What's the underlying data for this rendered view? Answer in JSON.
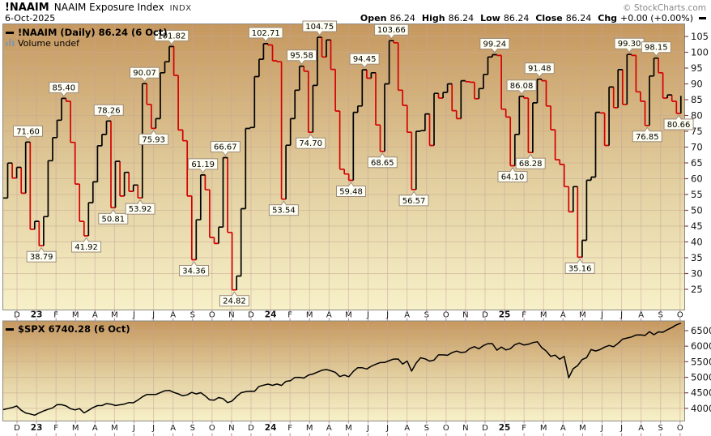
{
  "header": {
    "symbol": "!NAAIM",
    "title": "NAAIM Exposure Index",
    "exchange": "INDX",
    "date": "6-Oct-2025",
    "copyright": "© StockCharts.com",
    "quote": {
      "open_label": "Open",
      "open": "86.24",
      "high_label": "High",
      "high": "86.24",
      "low_label": "Low",
      "low": "86.24",
      "close_label": "Close",
      "close": "86.24",
      "chg_label": "Chg",
      "chg": "+0.00 (+0.00%)"
    }
  },
  "colors": {
    "up": "#000000",
    "down": "#d40000",
    "spx_line": "#000000",
    "grid_vertical": "#c79f9f",
    "grid_horizontal": "#c9ab92",
    "bg_top": "#c6985f",
    "bg_mid": "#e2cfa0",
    "bg_bottom": "#f7f0c8",
    "axis_text": "#141414",
    "x_tick": "#c08888",
    "y_tick": "#7a4a4a",
    "panel_border": "#8b8b83",
    "callout_bg": "#fffef2",
    "callout_border": "#9c8c7c",
    "volume_legend": "#66788a"
  },
  "chart_data": [
    {
      "type": "line",
      "style": "step",
      "title": "!NAAIM Exposure Index (Daily)",
      "legend": "!NAAIM (Daily) 86.24 (6 Oct)",
      "legend2": "Volume undef",
      "frequency": "weekly",
      "x_start": "2022-11-09",
      "x_end": "2025-10-01",
      "ylim": [
        18,
        109
      ],
      "yticks": [
        25,
        30,
        35,
        40,
        45,
        50,
        55,
        60,
        65,
        70,
        75,
        80,
        85,
        90,
        95,
        100,
        105
      ],
      "grid": true,
      "up_color": "#000000",
      "down_color": "#d40000",
      "x_axis_labels": [
        "D",
        "23",
        "F",
        "M",
        "A",
        "M",
        "J",
        "J",
        "A",
        "S",
        "O",
        "N",
        "D",
        "24",
        "F",
        "M",
        "A",
        "M",
        "J",
        "J",
        "A",
        "S",
        "O",
        "N",
        "D",
        "25",
        "F",
        "M",
        "A",
        "M",
        "J",
        "J",
        "A",
        "S",
        "O"
      ],
      "values": [
        53.91,
        64.96,
        60.2,
        63.6,
        55.4,
        71.6,
        44.0,
        46.5,
        38.79,
        48.0,
        65.7,
        73.0,
        78.5,
        85.4,
        84.5,
        71.5,
        58.3,
        46.5,
        41.92,
        52.4,
        59.0,
        70.4,
        74.0,
        78.26,
        50.81,
        65.5,
        54.5,
        62.0,
        56.0,
        58.0,
        53.92,
        90.07,
        83.5,
        75.93,
        79.0,
        93.5,
        97.0,
        101.82,
        92.7,
        75.4,
        72.0,
        54.5,
        34.36,
        47.0,
        61.19,
        56.5,
        41.4,
        39.5,
        44.7,
        66.67,
        43.0,
        24.82,
        29.2,
        50.5,
        75.9,
        76.2,
        92.3,
        97.8,
        102.71,
        102.3,
        97.3,
        97.0,
        53.54,
        70.6,
        79.0,
        88.0,
        95.58,
        94.0,
        74.7,
        89.5,
        104.75,
        98.5,
        103.9,
        94.6,
        81.4,
        63.0,
        61.5,
        59.48,
        81.0,
        83.0,
        94.45,
        91.8,
        93.5,
        77.0,
        68.65,
        90.0,
        103.66,
        103.0,
        88.0,
        83.2,
        74.7,
        56.57,
        75.0,
        75.2,
        80.5,
        70.5,
        87.0,
        85.5,
        87.3,
        90.0,
        81.5,
        79.0,
        91.0,
        90.7,
        90.5,
        85.3,
        88.5,
        93.0,
        98.5,
        99.24,
        99.0,
        82.0,
        79.5,
        64.1,
        74.0,
        86.08,
        85.5,
        68.28,
        84.0,
        91.48,
        91.0,
        83.0,
        75.5,
        66.0,
        64.5,
        57.5,
        49.5,
        57.5,
        35.16,
        40.5,
        59.5,
        60.5,
        81.0,
        80.8,
        70.5,
        89.0,
        82.5,
        94.5,
        83.5,
        99.3,
        99.0,
        87.5,
        84.5,
        76.85,
        92.5,
        98.15,
        93.5,
        85.5,
        86.5,
        84.5,
        80.66,
        86.24
      ],
      "annotations": [
        {
          "label": "71.60",
          "week": 5,
          "pos": "above"
        },
        {
          "label": "38.79",
          "week": 8,
          "pos": "below"
        },
        {
          "label": "85.40",
          "week": 13,
          "pos": "above"
        },
        {
          "label": "41.92",
          "week": 18,
          "pos": "below"
        },
        {
          "label": "78.26",
          "week": 23,
          "pos": "above"
        },
        {
          "label": "50.81",
          "week": 24,
          "pos": "below"
        },
        {
          "label": "53.92",
          "week": 30,
          "pos": "below"
        },
        {
          "label": "90.07",
          "week": 31,
          "pos": "above"
        },
        {
          "label": "75.93",
          "week": 33,
          "pos": "below"
        },
        {
          "label": "101.82",
          "week": 37,
          "pos": "above"
        },
        {
          "label": "34.36",
          "week": 42,
          "pos": "below"
        },
        {
          "label": "61.19",
          "week": 44,
          "pos": "above"
        },
        {
          "label": "66.67",
          "week": 49,
          "pos": "above"
        },
        {
          "label": "24.82",
          "week": 51,
          "pos": "below"
        },
        {
          "label": "102.71",
          "week": 58,
          "pos": "above"
        },
        {
          "label": "53.54",
          "week": 62,
          "pos": "below"
        },
        {
          "label": "95.58",
          "week": 66,
          "pos": "above"
        },
        {
          "label": "74.70",
          "week": 68,
          "pos": "below"
        },
        {
          "label": "104.75",
          "week": 70,
          "pos": "above"
        },
        {
          "label": "59.48",
          "week": 77,
          "pos": "below"
        },
        {
          "label": "94.45",
          "week": 80,
          "pos": "above"
        },
        {
          "label": "68.65",
          "week": 84,
          "pos": "below"
        },
        {
          "label": "103.66",
          "week": 86,
          "pos": "above"
        },
        {
          "label": "56.57",
          "week": 91,
          "pos": "below"
        },
        {
          "label": "99.24",
          "week": 109,
          "pos": "above"
        },
        {
          "label": "64.10",
          "week": 113,
          "pos": "below"
        },
        {
          "label": "86.08",
          "week": 115,
          "pos": "above"
        },
        {
          "label": "68.28",
          "week": 117,
          "pos": "below"
        },
        {
          "label": "91.48",
          "week": 119,
          "pos": "above"
        },
        {
          "label": "35.16",
          "week": 128,
          "pos": "below"
        },
        {
          "label": "99.30",
          "week": 139,
          "pos": "above"
        },
        {
          "label": "76.85",
          "week": 143,
          "pos": "below"
        },
        {
          "label": "98.15",
          "week": 145,
          "pos": "above"
        },
        {
          "label": "80.66",
          "week": 150,
          "pos": "below"
        }
      ]
    },
    {
      "type": "line",
      "style": "linear",
      "title": "$SPX",
      "legend": "$SPX 6740.28 (6 Oct)",
      "frequency": "weekly",
      "x_start": "2022-11-09",
      "x_end": "2025-10-06",
      "ylim": [
        3600,
        6790
      ],
      "yticks": [
        4000,
        4500,
        5000,
        5500,
        6000,
        6500
      ],
      "grid": true,
      "line_color": "#000000",
      "values": [
        3958,
        3992,
        4027,
        4080,
        3940,
        3852,
        3822,
        3783,
        3853,
        3920,
        3970,
        4017,
        4120,
        4118,
        4080,
        3990,
        3952,
        3992,
        3855,
        3937,
        4028,
        4090,
        4092,
        4155,
        4135,
        4091,
        4115,
        4138,
        4188,
        4180,
        4268,
        4372,
        4446,
        4450,
        4447,
        4510,
        4566,
        4580,
        4513,
        4468,
        4404,
        4436,
        4515,
        4465,
        4505,
        4402,
        4275,
        4264,
        4350,
        4314,
        4186,
        4238,
        4383,
        4503,
        4538,
        4550,
        4549,
        4707,
        4746,
        4781,
        4742,
        4783,
        4739,
        4868,
        4890,
        4995,
        5000,
        4976,
        5070,
        5105,
        5165,
        5225,
        5248,
        5211,
        5160,
        5022,
        5071,
        5018,
        5188,
        5308,
        5307,
        5267,
        5354,
        5421,
        5473,
        5477,
        5537,
        5584,
        5588,
        5427,
        5522,
        5199,
        5455,
        5626,
        5592,
        5520,
        5554,
        5722,
        5722,
        5709,
        5792,
        5842,
        5797,
        5813,
        5929,
        5985,
        5917,
        6021,
        6084,
        6084,
        5872,
        5974,
        5881,
        5918,
        6049,
        6101,
        6039,
        6061,
        6115,
        6144,
        5956,
        5842,
        5675,
        5712,
        5581,
        5671,
        4983,
        5276,
        5376,
        5569,
        5631,
        5893,
        5845,
        5889,
        5971,
        6022,
        5981,
        6092,
        6227,
        6263,
        6297,
        6359,
        6363,
        6345,
        6466,
        6370,
        6460,
        6448,
        6532,
        6600,
        6688,
        6740
      ]
    }
  ]
}
